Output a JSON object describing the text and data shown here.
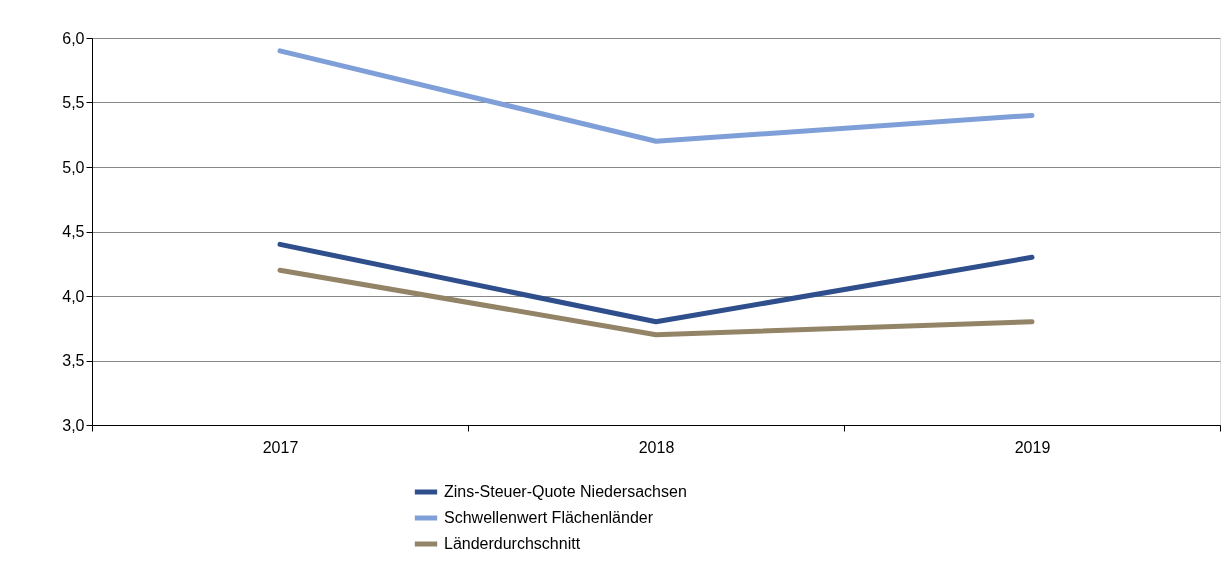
{
  "chart_data": {
    "type": "line",
    "categories": [
      "2017",
      "2018",
      "2019"
    ],
    "series": [
      {
        "name": "Zins-Steuer-Quote Niedersachsen",
        "color": "#2e4e8c",
        "values": [
          4.4,
          3.8,
          4.3
        ]
      },
      {
        "name": "Schwellenwert Flächenländer",
        "color": "#7f9fd8",
        "values": [
          5.9,
          5.2,
          5.4
        ]
      },
      {
        "name": "Länderdurchschnitt",
        "color": "#938467",
        "values": [
          4.2,
          3.7,
          3.8
        ]
      }
    ],
    "ylim": [
      3.0,
      6.0
    ],
    "yticks": [
      {
        "value": 3.0,
        "label": "3,0"
      },
      {
        "value": 3.5,
        "label": "3,5"
      },
      {
        "value": 4.0,
        "label": "4,0"
      },
      {
        "value": 4.5,
        "label": "4,5"
      },
      {
        "value": 5.0,
        "label": "5,0"
      },
      {
        "value": 5.5,
        "label": "5,5"
      },
      {
        "value": 6.0,
        "label": "6,0"
      }
    ],
    "grid": "y",
    "legend": "bottom",
    "marker": "none",
    "line_style": "solid"
  }
}
